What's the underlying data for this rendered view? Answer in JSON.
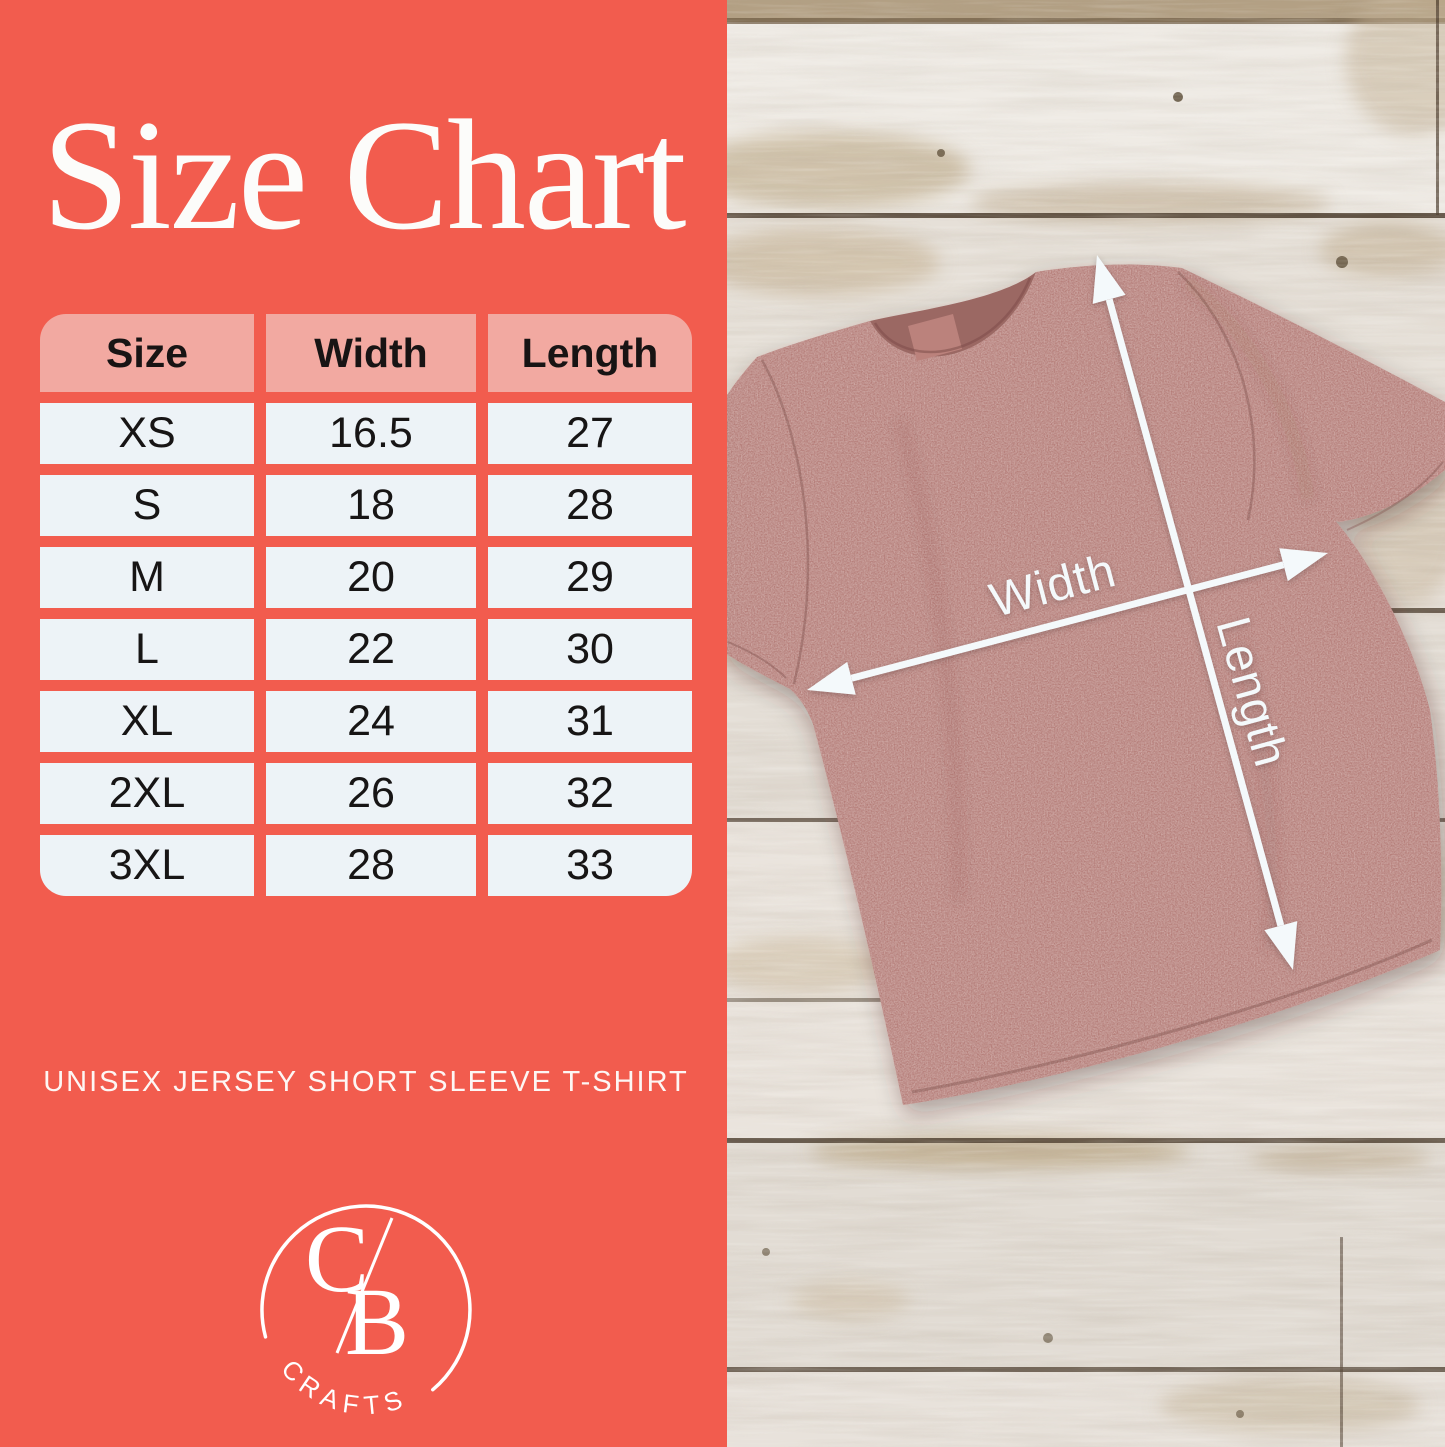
{
  "panel": {
    "title": "Size Chart",
    "subtitle": "UNISEX JERSEY SHORT SLEEVE T-SHIRT",
    "accent_color": "#f25c4e",
    "header_bg": "#f2a9a1",
    "cell_bg": "#edf3f7",
    "text_color": "#171515",
    "title_color": "#fcfcfa"
  },
  "chart_data": {
    "type": "table",
    "title": "Size Chart",
    "columns": [
      "Size",
      "Width",
      "Length"
    ],
    "rows": [
      [
        "XS",
        "16.5",
        "27"
      ],
      [
        "S",
        "18",
        "28"
      ],
      [
        "M",
        "20",
        "29"
      ],
      [
        "L",
        "22",
        "30"
      ],
      [
        "XL",
        "24",
        "31"
      ],
      [
        "2XL",
        "26",
        "32"
      ],
      [
        "3XL",
        "28",
        "33"
      ]
    ]
  },
  "logo": {
    "letter_c": "C",
    "letter_b": "B",
    "wordmark": "CRAFTS",
    "color": "#ffffff"
  },
  "photo": {
    "width_label": "Width",
    "length_label": "Length",
    "arrow_color": "#f4f9fb",
    "shirt_color": "#b57e79",
    "shirt_collar_color": "#9b6763",
    "wood_color": "#e7e1da",
    "wood_gap_color": "#4a3b2c"
  }
}
